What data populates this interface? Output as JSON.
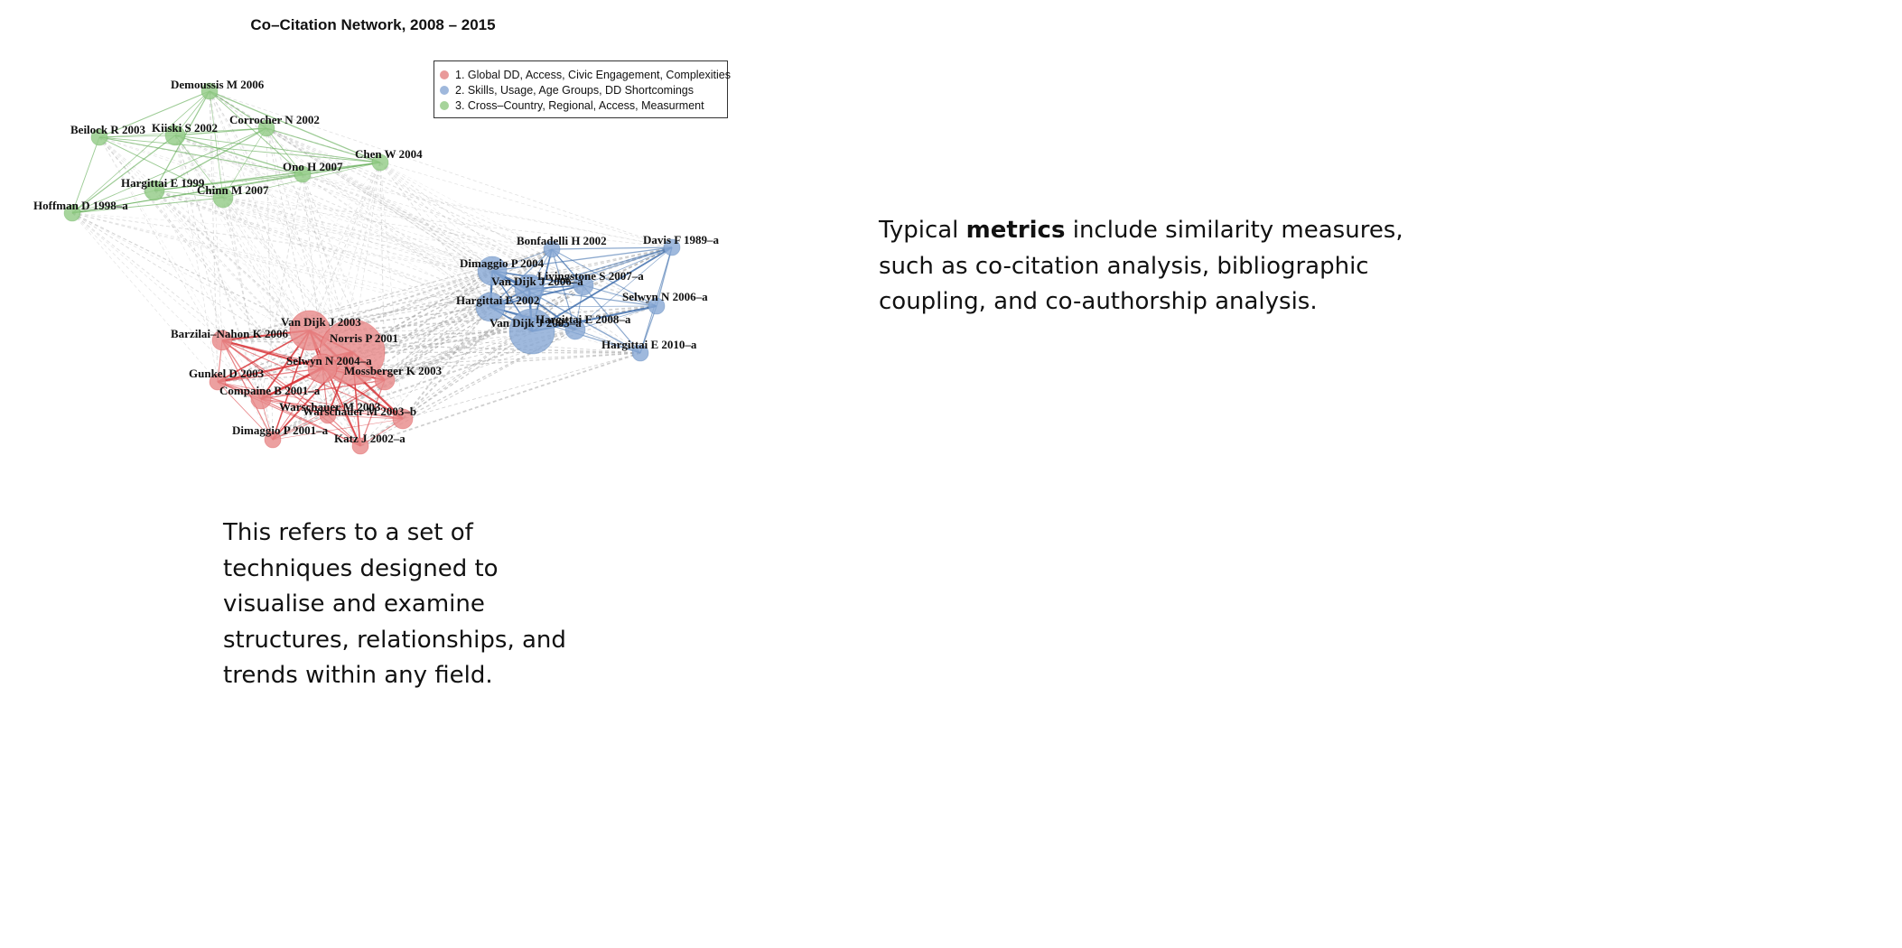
{
  "title": "Co–Citation Network, 2008 – 2015",
  "legend": [
    {
      "label": "1. Global DD, Access, Civic Engagement, Complexities",
      "color": "#e99a9a"
    },
    {
      "label": "2. Skills, Usage, Age Groups, DD Shortcomings",
      "color": "#9fb8dc"
    },
    {
      "label": "3. Cross–Country, Regional, Access, Measurment",
      "color": "#a6d39b"
    }
  ],
  "colors": {
    "cluster1": "#e88b8b",
    "cluster2": "#8aaad6",
    "cluster3": "#94cc88",
    "edge1": "#d8363a",
    "edge2": "#3f6fad",
    "edge3": "#5aa84c",
    "edge_between": "#a8a8a8"
  },
  "nodes": [
    {
      "id": "demoussis",
      "label": "Demoussis M 2006",
      "cluster": 3,
      "size": 1
    },
    {
      "id": "beilock",
      "label": "Beilock R 2003",
      "cluster": 3,
      "size": 1
    },
    {
      "id": "kiiski",
      "label": "Kiiski S 2002",
      "cluster": 3,
      "size": 2
    },
    {
      "id": "corrocher",
      "label": "Corrocher N 2002",
      "cluster": 3,
      "size": 1
    },
    {
      "id": "chen",
      "label": "Chen W 2004",
      "cluster": 3,
      "size": 1
    },
    {
      "id": "ono",
      "label": "Ono H 2007",
      "cluster": 3,
      "size": 1
    },
    {
      "id": "hargittai1999",
      "label": "Hargittai E 1999",
      "cluster": 3,
      "size": 2
    },
    {
      "id": "chinn",
      "label": "Chinn M 2007",
      "cluster": 3,
      "size": 2
    },
    {
      "id": "hoffman",
      "label": "Hoffman D 1998–a",
      "cluster": 3,
      "size": 1
    },
    {
      "id": "bonfadelli",
      "label": "Bonfadelli H 2002",
      "cluster": 2,
      "size": 1
    },
    {
      "id": "davis",
      "label": "Davis F 1989–a",
      "cluster": 2,
      "size": 1
    },
    {
      "id": "dimaggio2004",
      "label": "Dimaggio P 2004",
      "cluster": 2,
      "size": 3
    },
    {
      "id": "vandijk2006",
      "label": "Van Dijk J 2006–a",
      "cluster": 2,
      "size": 3
    },
    {
      "id": "livingstone",
      "label": "Livingstone S 2007–a",
      "cluster": 2,
      "size": 2
    },
    {
      "id": "hargittai2002",
      "label": "Hargittai E 2002",
      "cluster": 2,
      "size": 3
    },
    {
      "id": "selwyn2006",
      "label": "Selwyn N 2006–a",
      "cluster": 2,
      "size": 1
    },
    {
      "id": "vandijk2005",
      "label": "Van Dijk J 2005–a",
      "cluster": 2,
      "size": 5
    },
    {
      "id": "hargittai2008",
      "label": "Hargittai E 2008–a",
      "cluster": 2,
      "size": 2
    },
    {
      "id": "hargittai2010",
      "label": "Hargittai E 2010–a",
      "cluster": 2,
      "size": 1
    },
    {
      "id": "vandijk2003",
      "label": "Van Dijk J 2003",
      "cluster": 1,
      "size": 4
    },
    {
      "id": "norris",
      "label": "Norris P 2001",
      "cluster": 1,
      "size": 6
    },
    {
      "id": "barzilai",
      "label": "Barzilai–Nahon K 2006",
      "cluster": 1,
      "size": 2
    },
    {
      "id": "selwyn2004",
      "label": "Selwyn N 2004–a",
      "cluster": 1,
      "size": 3
    },
    {
      "id": "mossberger",
      "label": "Mossberger K 2003",
      "cluster": 1,
      "size": 2
    },
    {
      "id": "gunkel",
      "label": "Gunkel D 2003",
      "cluster": 1,
      "size": 1
    },
    {
      "id": "compaine",
      "label": "Compaine B 2001–a",
      "cluster": 1,
      "size": 2
    },
    {
      "id": "warschauer2003",
      "label": "Warschauer M 2003",
      "cluster": 1,
      "size": 1
    },
    {
      "id": "warschauer2003b",
      "label": "Warschauer M 2003–b",
      "cluster": 1,
      "size": 2
    },
    {
      "id": "dimaggio2001",
      "label": "Dimaggio P 2001–a",
      "cluster": 1,
      "size": 1
    },
    {
      "id": "katz",
      "label": "Katz J 2002–a",
      "cluster": 1,
      "size": 1
    }
  ],
  "text_right_prefix": "Typical ",
  "text_right_bold": "metrics",
  "text_right_suffix": " include similarity measures, such as co-citation analysis, bibliographic coupling, and co-authorship analysis.",
  "text_left": "This refers to a set of techniques designed to visualise and examine structures, relationships, and trends within any field."
}
